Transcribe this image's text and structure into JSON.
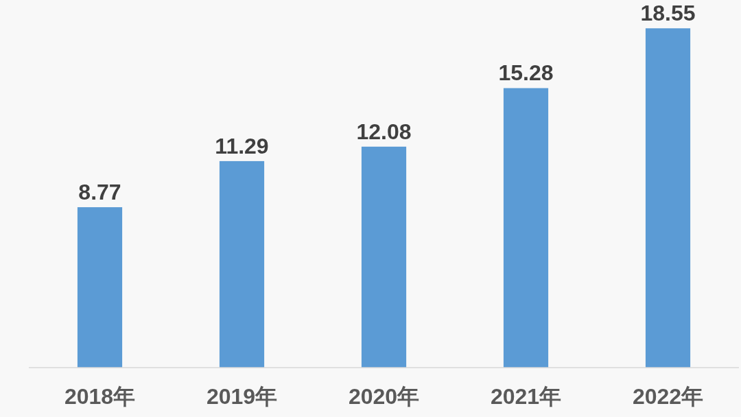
{
  "chart_data": {
    "type": "bar",
    "categories": [
      "2018年",
      "2019年",
      "2020年",
      "2021年",
      "2022年"
    ],
    "values": [
      8.77,
      11.29,
      12.08,
      15.28,
      18.55
    ],
    "color": "#5b9bd5",
    "data_labels": true
  }
}
